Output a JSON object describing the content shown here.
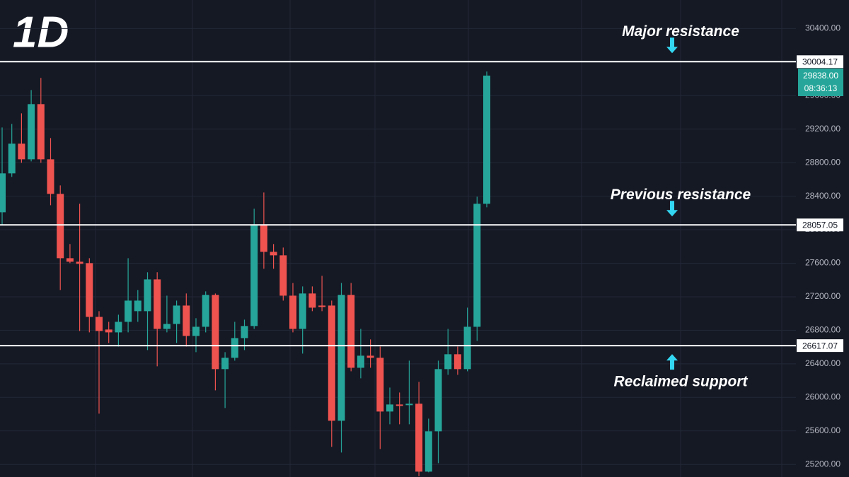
{
  "chart_data": {
    "type": "candlestick",
    "title": "1D",
    "up_color": "#26a69a",
    "down_color": "#ef5350",
    "ylim": [
      25050,
      30740
    ],
    "yticks": [
      {
        "value": 25200,
        "label": "25200.00"
      },
      {
        "value": 25600,
        "label": "25600.00"
      },
      {
        "value": 26000,
        "label": "26000.00"
      },
      {
        "value": 26400,
        "label": "26400.00"
      },
      {
        "value": 26800,
        "label": "26800.00"
      },
      {
        "value": 27200,
        "label": "27200.00"
      },
      {
        "value": 27600,
        "label": "27600.00"
      },
      {
        "value": 28000,
        "label": "28000.00"
      },
      {
        "value": 28400,
        "label": "28400.00"
      },
      {
        "value": 28800,
        "label": "28800.00"
      },
      {
        "value": 29200,
        "label": "29200.00"
      },
      {
        "value": 29600,
        "label": "29600.00"
      },
      {
        "value": 30000,
        "label": "30000.00"
      },
      {
        "value": 30400,
        "label": "30400.00"
      }
    ],
    "grid": true,
    "open": [
      28208,
      28672,
      29026,
      28840,
      29498,
      28840,
      28427,
      27660,
      27618,
      27601,
      26960,
      26809,
      26775,
      26901,
      27028,
      27028,
      27407,
      26817,
      26876,
      27095,
      26733,
      26842,
      27222,
      26337,
      26472,
      26707,
      26851,
      28056,
      27736,
      27694,
      27213,
      26817,
      27239,
      27095,
      27095,
      25721,
      27222,
      26353,
      26497,
      26472,
      25831,
      25915,
      25907,
      25924,
      25114,
      25595,
      26337,
      26514,
      26337,
      26842,
      28309
    ],
    "high": [
      29220,
      29262,
      29388,
      29666,
      29810,
      29093,
      28528,
      27829,
      28309,
      27660,
      27028,
      26901,
      26986,
      27660,
      27281,
      27492,
      27492,
      27213,
      27154,
      27239,
      26944,
      27264,
      27239,
      26539,
      26901,
      26927,
      28250,
      28444,
      27829,
      27787,
      27365,
      27323,
      27323,
      27450,
      27154,
      27365,
      27365,
      26817,
      26691,
      26606,
      26117,
      26058,
      26438,
      26185,
      25746,
      26438,
      26817,
      26606,
      27070,
      28393,
      29886
    ],
    "low": [
      28056,
      28630,
      28798,
      28815,
      28798,
      28292,
      27281,
      27601,
      26792,
      26775,
      25806,
      26649,
      26606,
      26775,
      26901,
      26564,
      26370,
      26775,
      26649,
      26606,
      26539,
      26775,
      26084,
      25873,
      26438,
      26564,
      26817,
      27534,
      27534,
      27154,
      26775,
      26522,
      27028,
      27028,
      25409,
      25342,
      26311,
      26227,
      26353,
      25384,
      25679,
      25679,
      25679,
      25060,
      25106,
      25215,
      26269,
      26269,
      26311,
      26674,
      28267
    ],
    "close": [
      28672,
      29026,
      28840,
      29498,
      28840,
      28427,
      27660,
      27618,
      27593,
      26960,
      26792,
      26775,
      26901,
      27154,
      27154,
      27407,
      26817,
      26876,
      27095,
      26733,
      26842,
      27222,
      26337,
      26472,
      26707,
      26851,
      28056,
      27736,
      27694,
      27213,
      26817,
      27239,
      27070,
      27079,
      25721,
      27222,
      26353,
      26497,
      26472,
      25831,
      25915,
      25907,
      25924,
      25114,
      25595,
      26337,
      26514,
      26337,
      26842,
      28309,
      29838
    ],
    "levels": [
      {
        "value": 30004.17,
        "annotation": "Major resistance",
        "arrow": "down"
      },
      {
        "value": 28057.05,
        "annotation": "Previous resistance",
        "arrow": "down"
      },
      {
        "value": 26617.07,
        "annotation": "Reclaimed support",
        "arrow": "up"
      }
    ],
    "last_price": {
      "value": 29838,
      "label": "29838.00",
      "countdown": "08:36:13"
    }
  }
}
